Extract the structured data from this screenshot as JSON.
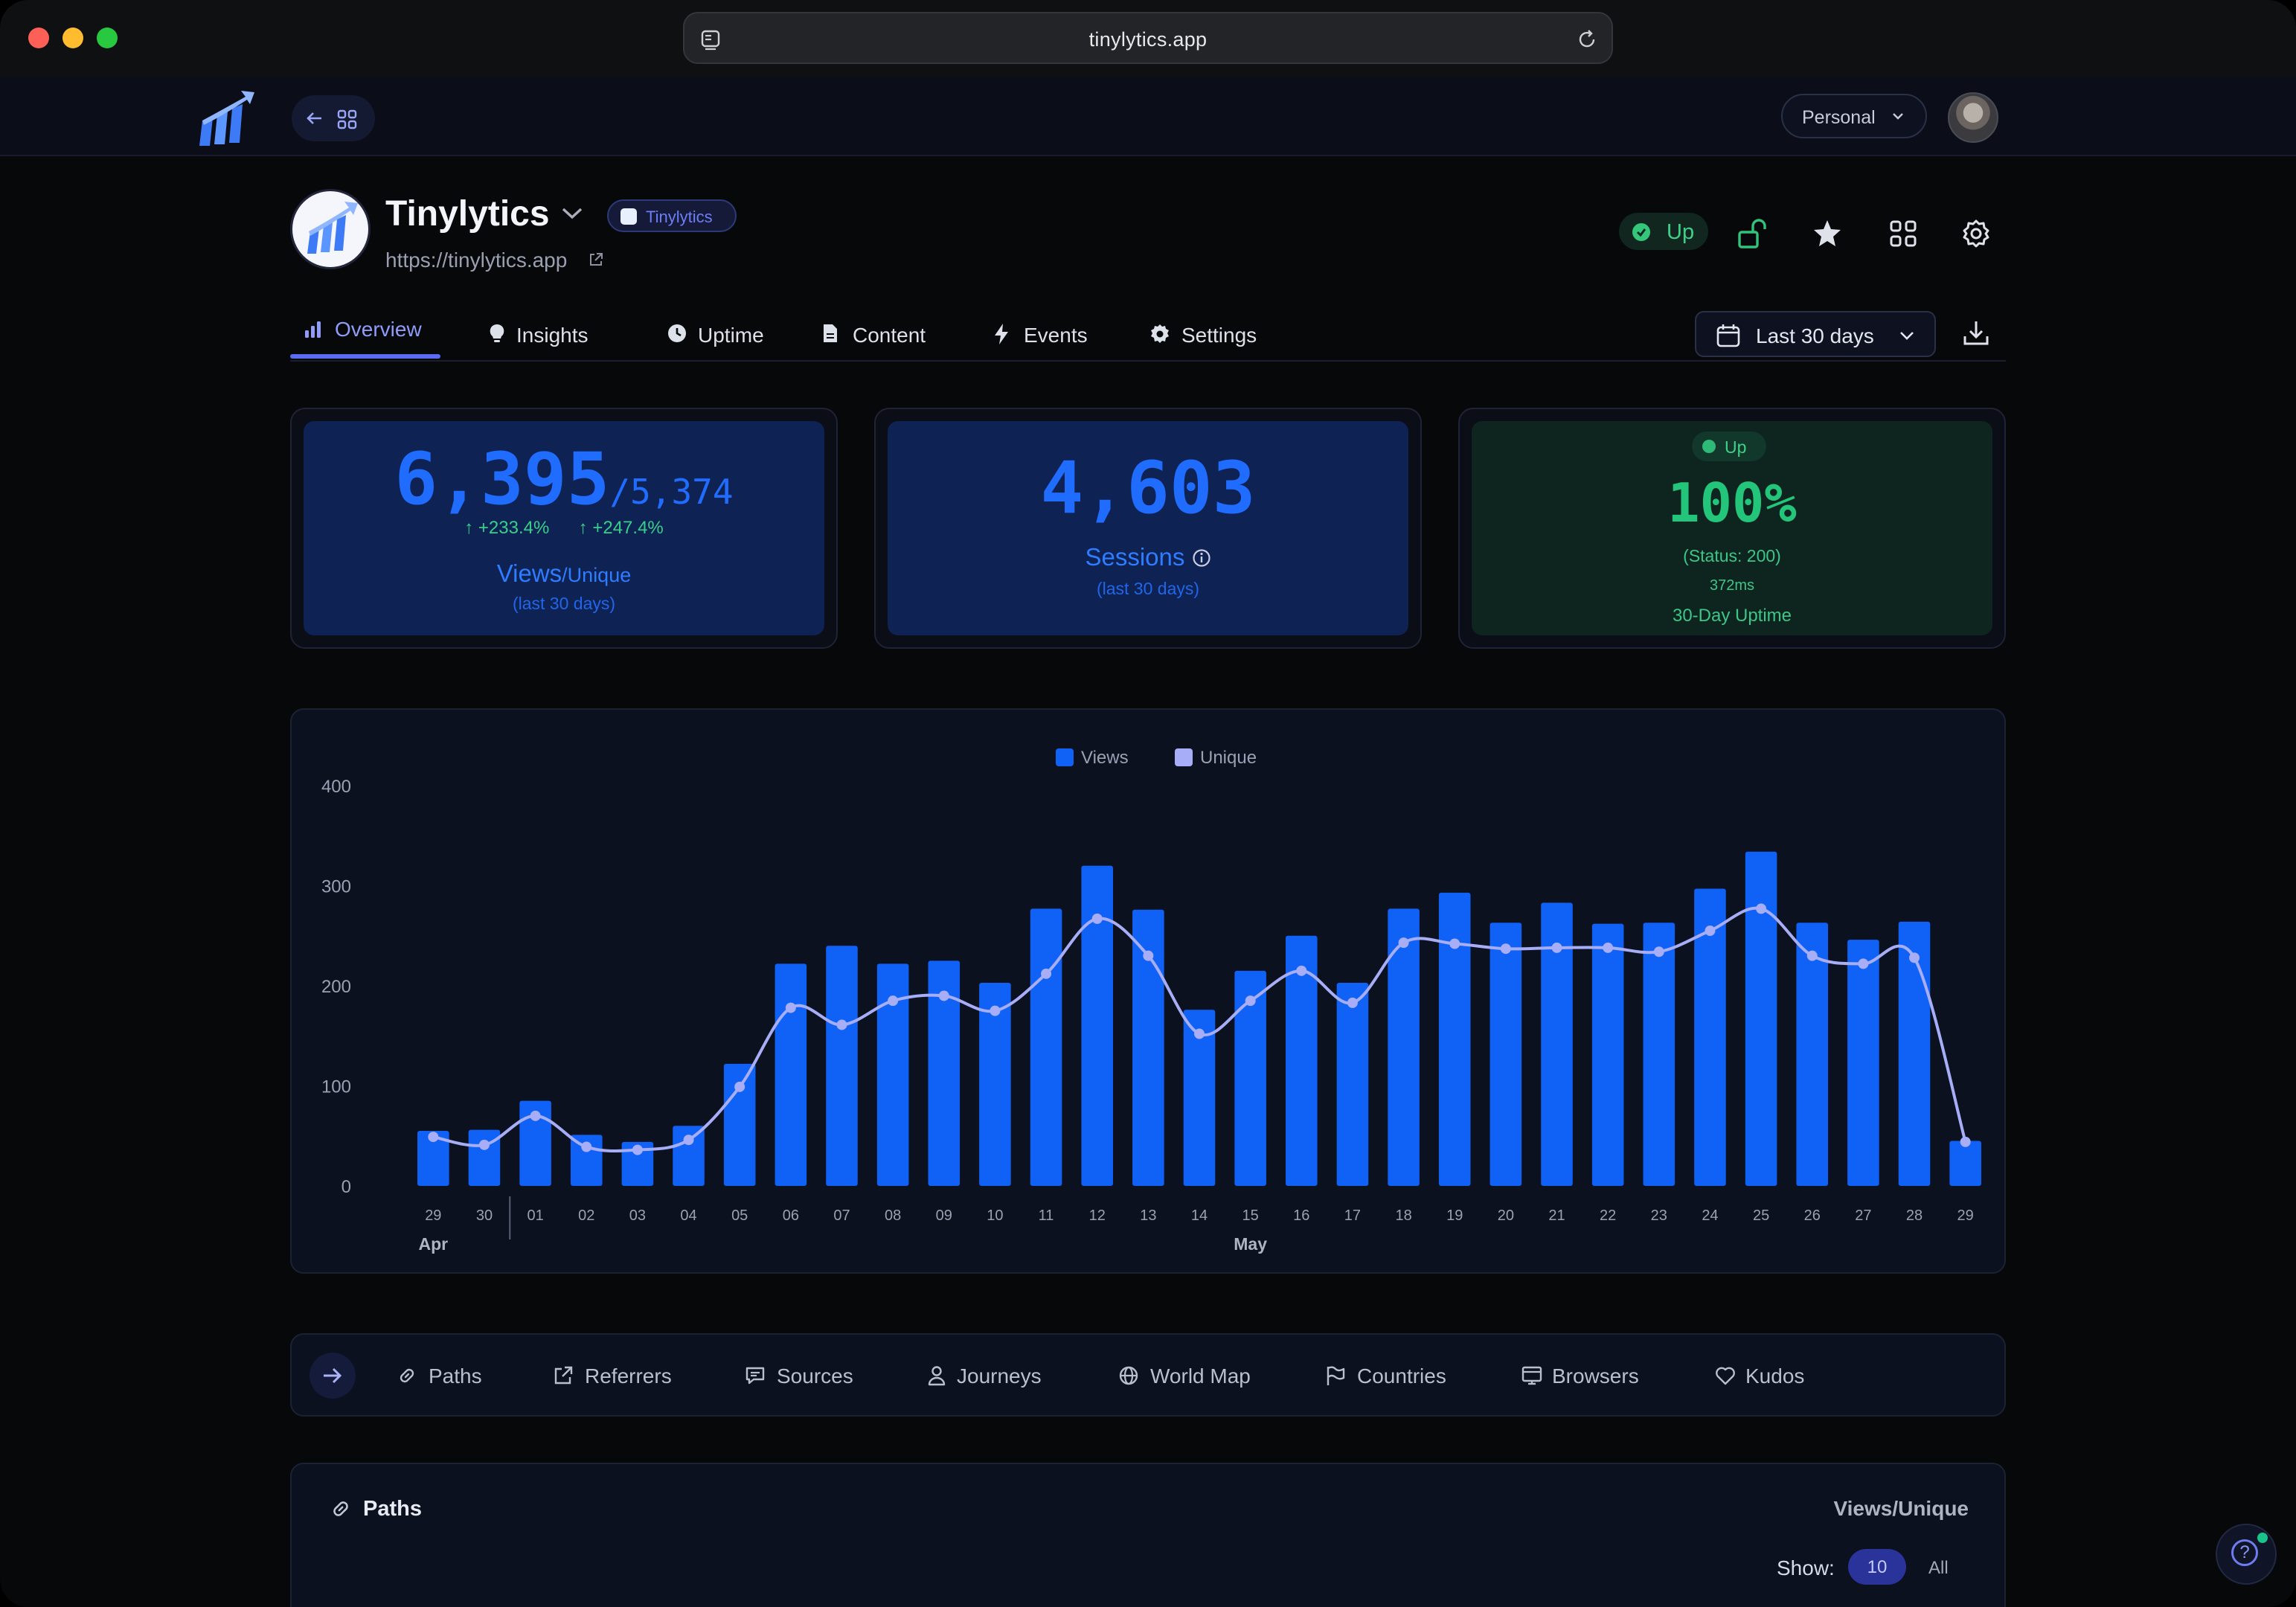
{
  "browser": {
    "url": "tinylytics.app"
  },
  "header": {
    "workspace": "Personal"
  },
  "site": {
    "name": "Tinylytics",
    "badge": "Tinylytics",
    "url": "https://tinylytics.app",
    "status": "Up"
  },
  "tabs": [
    {
      "label": "Overview",
      "icon": "bar-chart-icon",
      "active": true
    },
    {
      "label": "Insights",
      "icon": "lightbulb-icon"
    },
    {
      "label": "Uptime",
      "icon": "clock-icon"
    },
    {
      "label": "Content",
      "icon": "document-icon"
    },
    {
      "label": "Events",
      "icon": "bolt-icon"
    },
    {
      "label": "Settings",
      "icon": "gear-icon"
    }
  ],
  "date_range": "Last 30 days",
  "stats": {
    "views": {
      "value": "6,395",
      "unique": "/5,374",
      "views_change": "↑ +233.4%",
      "unique_change": "↑ +247.4%",
      "label_main": "Views",
      "label_sub": "/Unique",
      "period": "(last 30 days)"
    },
    "sessions": {
      "value": "4,603",
      "label": "Sessions",
      "period": "(last 30 days)"
    },
    "uptime": {
      "badge": "Up",
      "value": "100%",
      "status": "(Status: 200)",
      "response": "372ms",
      "label": "30-Day Uptime"
    }
  },
  "chart_data": {
    "type": "bar",
    "categories": [
      "29",
      "30",
      "01",
      "02",
      "03",
      "04",
      "05",
      "06",
      "07",
      "08",
      "09",
      "10",
      "11",
      "12",
      "13",
      "14",
      "15",
      "16",
      "17",
      "18",
      "19",
      "20",
      "21",
      "22",
      "23",
      "24",
      "25",
      "26",
      "27",
      "28",
      "29"
    ],
    "month_labels": [
      {
        "label": "Apr",
        "at": 0
      },
      {
        "label": "May",
        "at": 16
      }
    ],
    "series": [
      {
        "name": "Views",
        "type": "bar",
        "color": "#1061f5",
        "values": [
          55,
          56,
          85,
          51,
          44,
          60,
          122,
          222,
          240,
          222,
          225,
          203,
          277,
          320,
          276,
          176,
          215,
          250,
          203,
          277,
          293,
          263,
          283,
          262,
          263,
          297,
          334,
          263,
          246,
          264,
          45
        ]
      },
      {
        "name": "Unique",
        "type": "line",
        "color": "#a7aef7",
        "values": [
          49,
          41,
          70,
          39,
          36,
          46,
          99,
          178,
          161,
          185,
          190,
          175,
          212,
          267,
          230,
          152,
          185,
          215,
          183,
          243,
          242,
          237,
          238,
          238,
          234,
          255,
          277,
          230,
          222,
          228,
          44
        ]
      }
    ],
    "ylim": [
      0,
      400
    ],
    "yticks": [
      0,
      100,
      200,
      300,
      400
    ],
    "legend": "top-center"
  },
  "bottom_nav": [
    {
      "label": "Paths",
      "icon": "link-icon"
    },
    {
      "label": "Referrers",
      "icon": "external-link-icon"
    },
    {
      "label": "Sources",
      "icon": "chat-icon"
    },
    {
      "label": "Journeys",
      "icon": "user-icon"
    },
    {
      "label": "World Map",
      "icon": "globe-icon"
    },
    {
      "label": "Countries",
      "icon": "flag-icon"
    },
    {
      "label": "Browsers",
      "icon": "browser-icon"
    },
    {
      "label": "Kudos",
      "icon": "heart-icon"
    }
  ],
  "paths": {
    "title": "Paths",
    "column": "Views/Unique",
    "show_label": "Show:",
    "show_selected": "10",
    "show_all": "All"
  }
}
